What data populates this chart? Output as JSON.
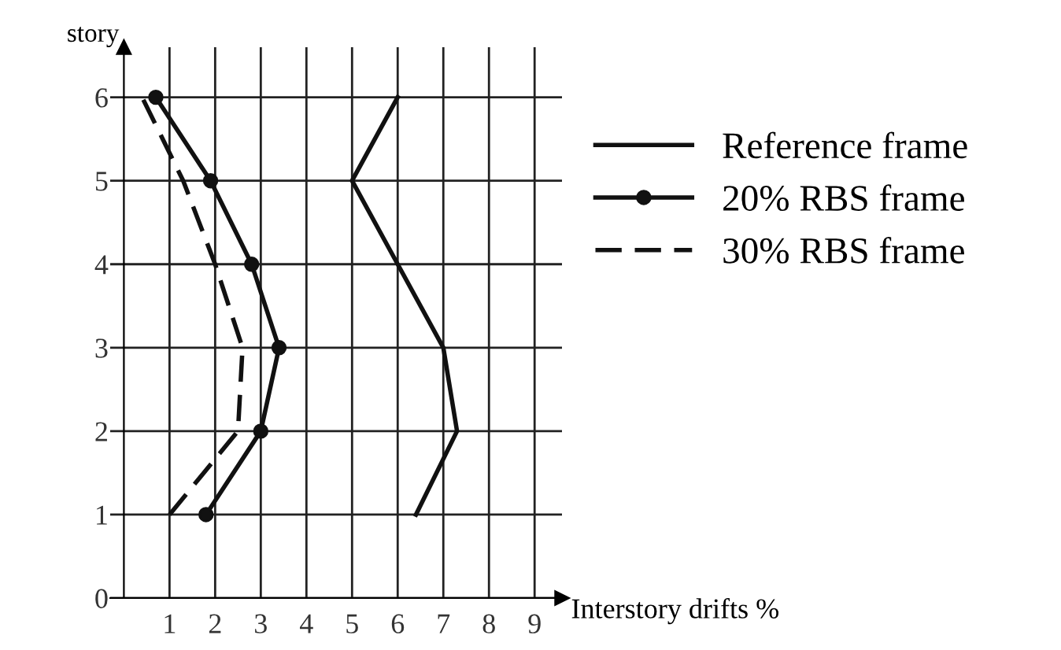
{
  "chart_data": {
    "type": "line",
    "xlabel": "Interstory drifts %",
    "ylabel": "story",
    "xlim": [
      -0.3,
      9.6
    ],
    "ylim": [
      0,
      6.6
    ],
    "xticks": [
      1,
      2,
      3,
      4,
      5,
      6,
      7,
      8,
      9
    ],
    "yticks": [
      0,
      1,
      2,
      3,
      4,
      5,
      6
    ],
    "grid": true,
    "legend": "right",
    "series": [
      {
        "name": "Reference frame",
        "color": "#111111",
        "x": [
          6.4,
          7.3,
          7.0,
          6.0,
          5.0,
          6.0
        ],
        "values": [
          1,
          2,
          3,
          4,
          5,
          6
        ],
        "line_style": "solid",
        "marker": "none"
      },
      {
        "name": "20% RBS frame",
        "color": "#111111",
        "x": [
          1.8,
          3.0,
          3.4,
          2.8,
          1.9,
          0.7
        ],
        "values": [
          1,
          2,
          3,
          4,
          5,
          6
        ],
        "line_style": "solid",
        "marker": "circle"
      },
      {
        "name": "30% RBS frame",
        "color": "#111111",
        "x": [
          1.0,
          2.5,
          2.6,
          2.0,
          1.3,
          0.4
        ],
        "values": [
          1,
          2,
          3,
          4,
          5,
          6
        ],
        "line_style": "dashed",
        "marker": "none"
      }
    ]
  }
}
